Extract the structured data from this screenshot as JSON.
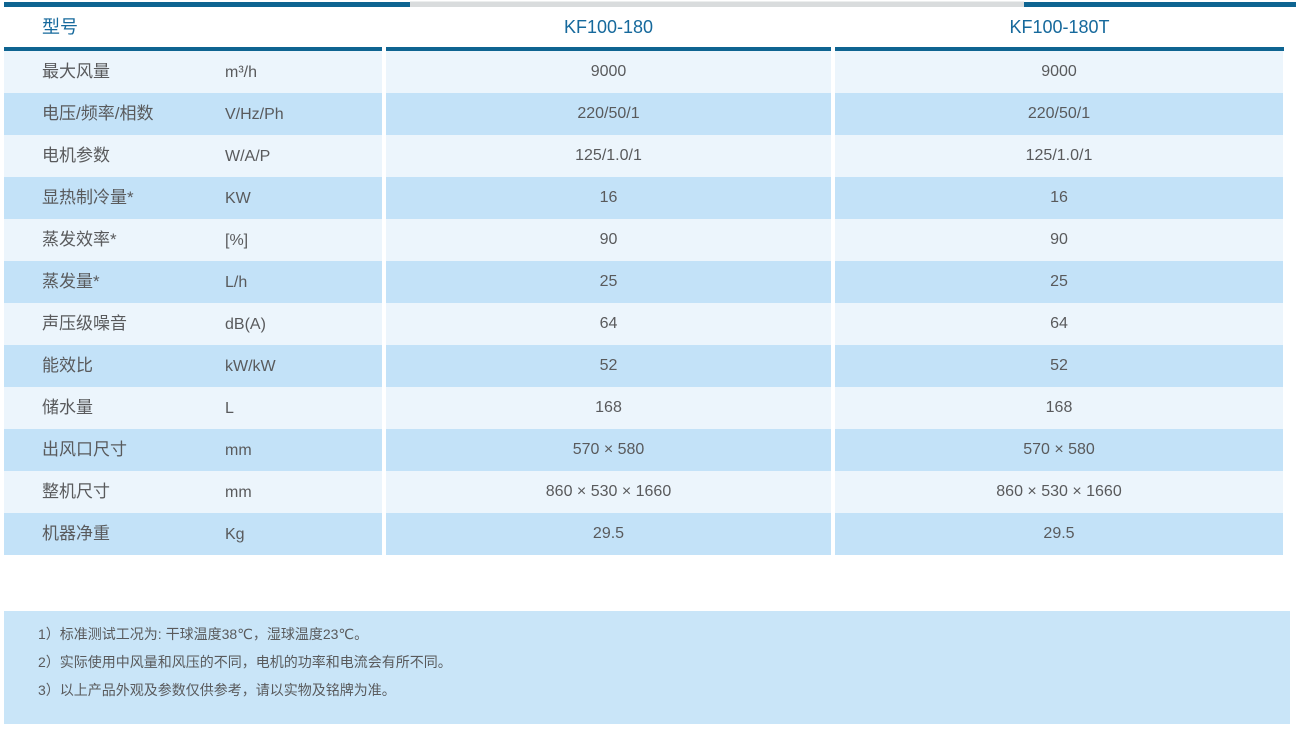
{
  "table": {
    "header": {
      "col1": "型号",
      "col2": "KF100-180",
      "col3": "KF100-180T"
    },
    "rows": [
      {
        "label": "最大风量",
        "unit": "m³/h",
        "v1": "9000",
        "v2": "9000"
      },
      {
        "label": "电压/频率/相数",
        "unit": "V/Hz/Ph",
        "v1": "220/50/1",
        "v2": "220/50/1"
      },
      {
        "label": "电机参数",
        "unit": "W/A/P",
        "v1": "125/1.0/1",
        "v2": "125/1.0/1"
      },
      {
        "label": "显热制冷量*",
        "unit": "KW",
        "v1": "16",
        "v2": "16"
      },
      {
        "label": "蒸发效率*",
        "unit": "[%]",
        "v1": "90",
        "v2": "90"
      },
      {
        "label": "蒸发量*",
        "unit": "L/h",
        "v1": "25",
        "v2": "25"
      },
      {
        "label": "声压级噪音",
        "unit": "dB(A)",
        "v1": "64",
        "v2": "64"
      },
      {
        "label": "能效比",
        "unit": "kW/kW",
        "v1": "52",
        "v2": "52"
      },
      {
        "label": "储水量",
        "unit": "L",
        "v1": "168",
        "v2": "168"
      },
      {
        "label": "出风口尺寸",
        "unit": "mm",
        "v1": "570 × 580",
        "v2": "570 × 580"
      },
      {
        "label": "整机尺寸",
        "unit": "mm",
        "v1": "860 × 530 × 1660",
        "v2": "860 × 530 × 1660"
      },
      {
        "label": "机器净重",
        "unit": "Kg",
        "v1": "29.5",
        "v2": "29.5"
      }
    ]
  },
  "notes": [
    "1）标准测试工况为: 干球温度38℃，湿球温度23℃。",
    "2）实际使用中风量和风压的不同，电机的功率和电流会有所不同。",
    "3）以上产品外观及参数仅供参考，请以实物及铭牌为准。"
  ],
  "colors": {
    "border_blue": "#0e6491",
    "header_text": "#16699c",
    "row_light": "#ecf5fc",
    "row_dark": "#c3e2f8",
    "notes_bg": "#c9e5f8",
    "body_text": "#595a5c",
    "scrollbar_gray": "#d9dcdd"
  }
}
